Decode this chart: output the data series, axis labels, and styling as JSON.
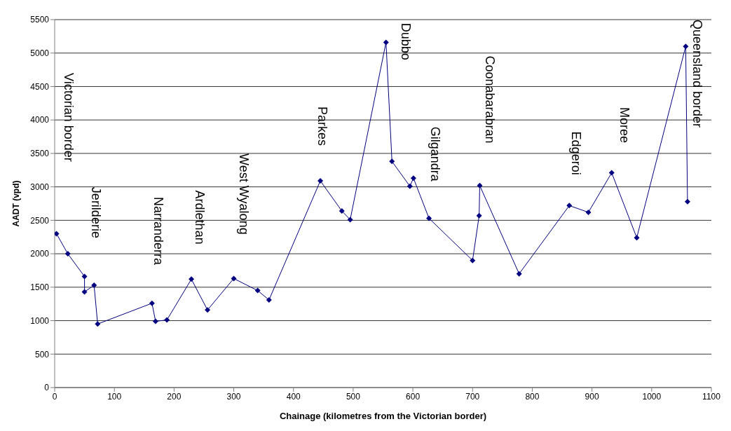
{
  "chart_data": {
    "type": "line",
    "xlabel": "Chainage (kilometres from the Victorian border)",
    "ylabel": "AADT (vpd)",
    "x": [
      3,
      22,
      50,
      50,
      66,
      72,
      163,
      169,
      188,
      229,
      256,
      300,
      340,
      359,
      445,
      481,
      495,
      555,
      565,
      595,
      601,
      627,
      700,
      711,
      712,
      778,
      862,
      894,
      933,
      975,
      1057,
      1060
    ],
    "series": [
      {
        "color": "#000080",
        "values": [
          2300,
          2000,
          1660,
          1430,
          1530,
          950,
          1260,
          990,
          1010,
          1620,
          1160,
          1630,
          1450,
          1310,
          3090,
          2640,
          2510,
          5160,
          3380,
          3010,
          3130,
          2530,
          1900,
          2570,
          3020,
          1700,
          2720,
          2620,
          3210,
          2240,
          5100,
          2780
        ]
      }
    ],
    "xlim": [
      0,
      1100
    ],
    "xticks": [
      0,
      100,
      200,
      300,
      400,
      500,
      600,
      700,
      800,
      900,
      1000,
      1100
    ],
    "ylim": [
      0,
      5500
    ],
    "yticks": [
      0,
      500,
      1000,
      1500,
      2000,
      2500,
      3000,
      3500,
      4000,
      4500,
      5000,
      5500
    ],
    "grid": "y",
    "legend": false,
    "marker": "diamond",
    "line_style": "solid",
    "annotations": [
      "Victorian border",
      "Jerilderie",
      "Narranderra",
      "Ardlethan",
      "West Wyalong",
      "Parkes",
      "Dubbo",
      "Gilgandra",
      "Coonabarabran",
      "Edgeroi",
      "Moree",
      "Queensland border"
    ]
  }
}
